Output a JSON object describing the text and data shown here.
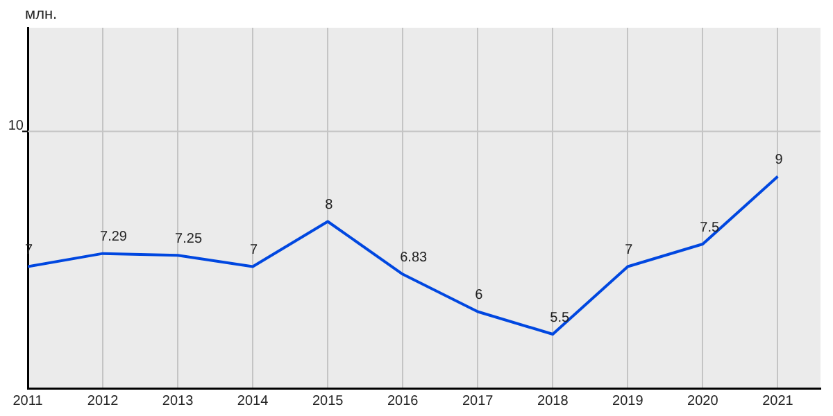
{
  "chart_data": {
    "type": "line",
    "ylabel": "млн.",
    "x": [
      2011,
      2012,
      2013,
      2014,
      2015,
      2016,
      2017,
      2018,
      2019,
      2020,
      2021
    ],
    "series": [
      {
        "color": "#0047e0",
        "values": [
          7,
          7.29,
          7.25,
          7,
          8,
          6.83,
          6,
          5.5,
          7,
          7.5,
          9
        ]
      }
    ],
    "xlim": [
      2011,
      2021.57
    ],
    "xticks": [
      2011,
      2012,
      2013,
      2014,
      2015,
      2016,
      2017,
      2018,
      2019,
      2020,
      2021
    ],
    "ylim": [
      4.3,
      12.3
    ],
    "ref_lines": [
      {
        "axis": "y",
        "value": 10,
        "label": "10",
        "color": "#c4c4c4"
      }
    ],
    "grid": "x",
    "legend": false,
    "marker": "none",
    "line_style": "solid",
    "data_labels": true
  }
}
